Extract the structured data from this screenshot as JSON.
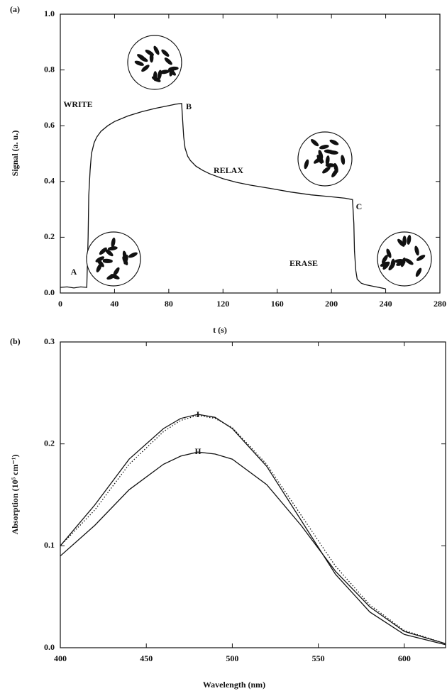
{
  "chart_data": [
    {
      "type": "line",
      "panel_label": "(a)",
      "xlabel": "t (s)",
      "ylabel": "Signal (a. u.)",
      "x": [
        0,
        5,
        10,
        15,
        19.5,
        20.5,
        21,
        22,
        23,
        25,
        27,
        30,
        35,
        40,
        50,
        60,
        70,
        80,
        85,
        89.5,
        90.5,
        91,
        92,
        94,
        96,
        100,
        105,
        110,
        120,
        130,
        140,
        155,
        170,
        185,
        200,
        210,
        215.5,
        216.5,
        217,
        218,
        219,
        222,
        225,
        230,
        235,
        240
      ],
      "series": [
        {
          "color": "#111111",
          "style": "solid",
          "values": [
            0.02,
            0.022,
            0.018,
            0.022,
            0.02,
            0.2,
            0.35,
            0.44,
            0.5,
            0.54,
            0.56,
            0.58,
            0.6,
            0.615,
            0.635,
            0.65,
            0.662,
            0.672,
            0.677,
            0.68,
            0.6,
            0.56,
            0.52,
            0.49,
            0.475,
            0.455,
            0.44,
            0.428,
            0.41,
            0.397,
            0.387,
            0.375,
            0.362,
            0.352,
            0.345,
            0.34,
            0.335,
            0.25,
            0.15,
            0.08,
            0.05,
            0.035,
            0.03,
            0.025,
            0.02,
            0.015
          ]
        }
      ],
      "xlim": [
        0,
        280
      ],
      "xticks": [
        0,
        40,
        80,
        120,
        160,
        200,
        240,
        280
      ],
      "ylim": [
        0,
        1
      ],
      "yticks": [
        {
          "value": 0,
          "label": "0.0"
        },
        0.2,
        0.4,
        0.6,
        0.8,
        {
          "value": 1,
          "label": "1.0"
        }
      ],
      "annotations": [
        "WRITE",
        "B",
        "RELAX",
        "C",
        "ERASE",
        "A"
      ]
    },
    {
      "type": "line",
      "panel_label": "(b)",
      "xlabel": "Wavelength (nm)",
      "ylabel": "Absorption (10⁵ cm⁻¹)",
      "x": [
        400,
        420,
        440,
        460,
        470,
        480,
        490,
        500,
        520,
        540,
        560,
        580,
        600,
        624
      ],
      "series": [
        {
          "color": "#111111",
          "style": "solid",
          "values": [
            0.1,
            0.14,
            0.185,
            0.215,
            0.225,
            0.229,
            0.226,
            0.215,
            0.178,
            0.125,
            0.072,
            0.035,
            0.013,
            0.003
          ]
        },
        {
          "color": "#111111",
          "style": "dotted",
          "values": [
            0.1,
            0.135,
            0.18,
            0.212,
            0.223,
            0.228,
            0.225,
            0.216,
            0.18,
            0.13,
            0.08,
            0.042,
            0.017,
            0.004
          ]
        },
        {
          "color": "#111111",
          "style": "solid",
          "values": [
            0.09,
            0.12,
            0.155,
            0.18,
            0.188,
            0.192,
            0.19,
            0.185,
            0.16,
            0.12,
            0.075,
            0.04,
            0.016,
            0.004
          ]
        }
      ],
      "xlim": [
        400,
        624
      ],
      "xticks": [
        400,
        450,
        500,
        550,
        600
      ],
      "ylim": [
        0,
        0.3
      ],
      "yticks": [
        {
          "value": 0,
          "label": "0.0"
        },
        0.1,
        0.2,
        0.3
      ],
      "annotations": [
        "I",
        "II"
      ]
    }
  ]
}
